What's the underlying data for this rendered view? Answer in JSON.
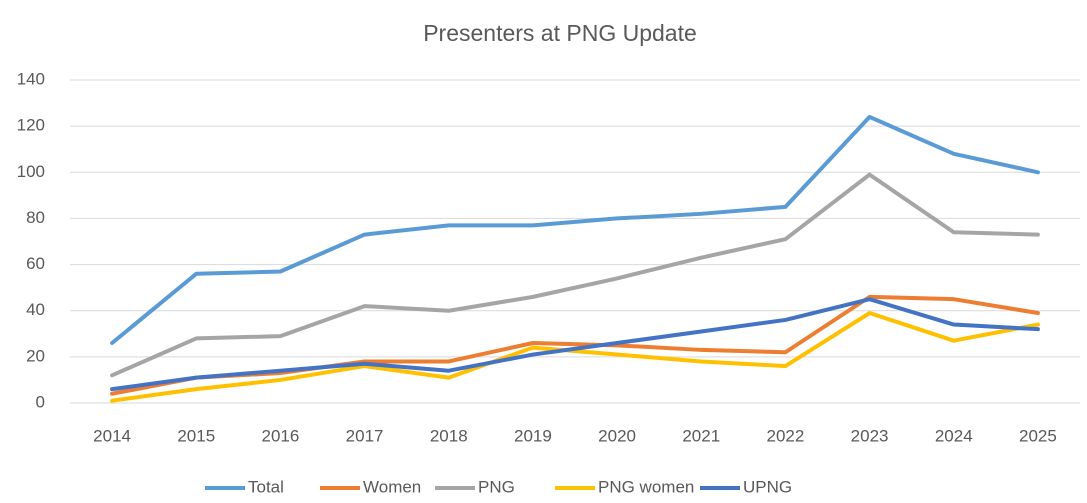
{
  "chart_data": {
    "type": "line",
    "title": "Presenters at PNG Update",
    "categories": [
      "2014",
      "2015",
      "2016",
      "2017",
      "2018",
      "2019",
      "2020",
      "2021",
      "2022",
      "2023",
      "2024",
      "2025"
    ],
    "series": [
      {
        "name": "Total",
        "color": "#5b9bd5",
        "values": [
          26,
          56,
          57,
          73,
          77,
          77,
          80,
          82,
          85,
          124,
          108,
          100
        ]
      },
      {
        "name": "Women",
        "color": "#ed7d31",
        "values": [
          4,
          11,
          13,
          18,
          18,
          26,
          25,
          23,
          22,
          46,
          45,
          39
        ]
      },
      {
        "name": "PNG",
        "color": "#a5a5a5",
        "values": [
          12,
          28,
          29,
          42,
          40,
          46,
          54,
          63,
          71,
          99,
          74,
          73
        ]
      },
      {
        "name": "PNG women",
        "color": "#ffc000",
        "values": [
          1,
          6,
          10,
          16,
          11,
          24,
          21,
          18,
          16,
          39,
          27,
          34
        ]
      },
      {
        "name": "UPNG",
        "color": "#4472c4",
        "values": [
          6,
          11,
          14,
          17,
          14,
          21,
          26,
          31,
          36,
          45,
          34,
          32
        ]
      }
    ],
    "ylim": [
      0,
      140
    ],
    "yticks": [
      0,
      20,
      40,
      60,
      80,
      100,
      120,
      140
    ],
    "grid": true,
    "legend": "bottom"
  }
}
